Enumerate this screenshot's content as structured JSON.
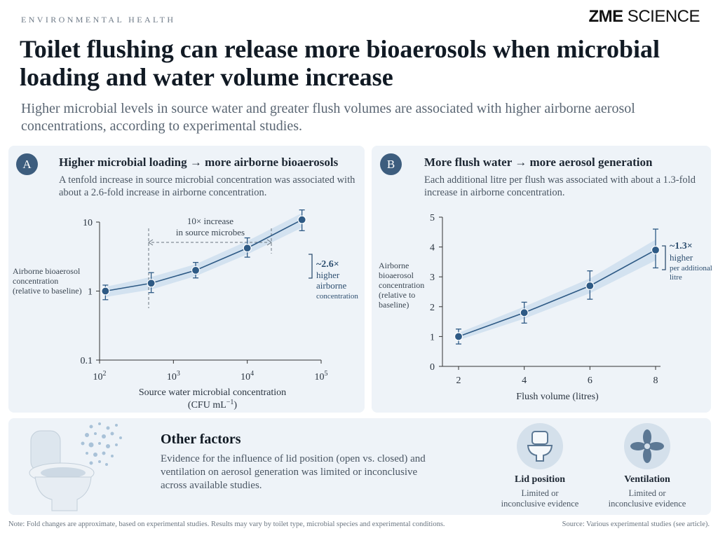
{
  "header": {
    "kicker": "ENVIRONMENTAL HEALTH",
    "brand_bold": "ZME",
    "brand_rest": " SCIENCE",
    "headline": "Toilet flushing can release more bioaerosols when microbial loading and water volume increase",
    "subhead": "Higher microbial levels in source water and greater flush volumes are associated with higher airborne aerosol concentrations, according to experimental studies."
  },
  "panel_a": {
    "badge": "A",
    "title": "Higher microbial loading → more airborne bioaerosols",
    "desc": "A tenfold increase in source microbial concentration was associated with about a 2.6-fold increase in airborne concentration.",
    "bracket_label_1": "10× increase",
    "bracket_label_2": "in source microbes",
    "annotation_1": "~2.6×",
    "annotation_2": "higher",
    "annotation_3": "airborne",
    "annotation_4": "concentration"
  },
  "panel_b": {
    "badge": "B",
    "title": "More flush water → more aerosol generation",
    "desc": "Each additional litre per flush was associated with about a 1.3-fold increase in airborne concentration.",
    "annotation_1": "~1.3×",
    "annotation_2": "higher",
    "annotation_3": "per additional",
    "annotation_4": "litre"
  },
  "chart_data": [
    {
      "type": "line",
      "x_scale": "log",
      "y_scale": "log",
      "x": [
        120,
        500,
        2000,
        10000,
        55000
      ],
      "y": [
        1.0,
        1.3,
        2.0,
        4.2,
        10.8
      ],
      "y_err_low": [
        0.75,
        0.95,
        1.55,
        3.1,
        7.5
      ],
      "y_err_high": [
        1.22,
        1.85,
        2.6,
        5.9,
        15.0
      ],
      "band_low": [
        0.82,
        1.05,
        1.65,
        3.4,
        8.3
      ],
      "band_high": [
        1.15,
        1.6,
        2.45,
        5.3,
        13.5
      ],
      "xlim": [
        100,
        100000
      ],
      "ylim": [
        0.1,
        10
      ],
      "x_tick_labels": [
        "10",
        "10",
        "10",
        "10"
      ],
      "x_tick_exponents": [
        "2",
        "3",
        "4",
        "5"
      ],
      "y_tick_labels": [
        "0.1",
        "1",
        "10"
      ],
      "xlabel_line1": "Source water microbial concentration",
      "xlabel_line2": "(CFU mL",
      "xlabel_exp": "−1",
      "xlabel_close": ")",
      "ylabel_lines": [
        "Airborne bioaerosol",
        "concentration",
        "(relative to baseline)"
      ]
    },
    {
      "type": "line",
      "x": [
        2,
        4,
        6,
        8
      ],
      "y": [
        1.0,
        1.8,
        2.7,
        3.9
      ],
      "y_err_low": [
        0.75,
        1.45,
        2.25,
        3.3
      ],
      "y_err_high": [
        1.25,
        2.15,
        3.2,
        4.6
      ],
      "band_low": [
        0.88,
        1.6,
        2.45,
        3.55
      ],
      "band_high": [
        1.12,
        2.0,
        2.95,
        4.25
      ],
      "xlim": [
        2,
        8
      ],
      "ylim": [
        0,
        5
      ],
      "x_ticks": [
        "2",
        "4",
        "6",
        "8"
      ],
      "y_ticks": [
        "0",
        "1",
        "2",
        "3",
        "4",
        "5"
      ],
      "xlabel": "Flush volume (litres)",
      "ylabel_lines": [
        "Airborne",
        "bioaerosol",
        "concentration",
        "(relative to",
        "baseline)"
      ]
    }
  ],
  "factors": {
    "title": "Other factors",
    "desc": "Evidence for the influence of lid position (open vs. closed) and ventilation on aerosol generation was limited or inconclusive across available studies.",
    "items": [
      {
        "name": "Lid position",
        "note_1": "Limited or",
        "note_2": "inconclusive evidence",
        "icon": "toilet-icon"
      },
      {
        "name": "Ventilation",
        "note_1": "Limited or",
        "note_2": "inconclusive evidence",
        "icon": "fan-icon"
      }
    ]
  },
  "footer": {
    "note": "Note: Fold changes are approximate, based on experimental studies. Results may vary by toilet type, microbial species and experimental conditions.",
    "source": "Source: Various experimental studies (see article)."
  },
  "colors": {
    "accent": "#3d5d7e",
    "line": "#2e5a85",
    "band": "#c9dced",
    "panel": "#eef3f8"
  }
}
